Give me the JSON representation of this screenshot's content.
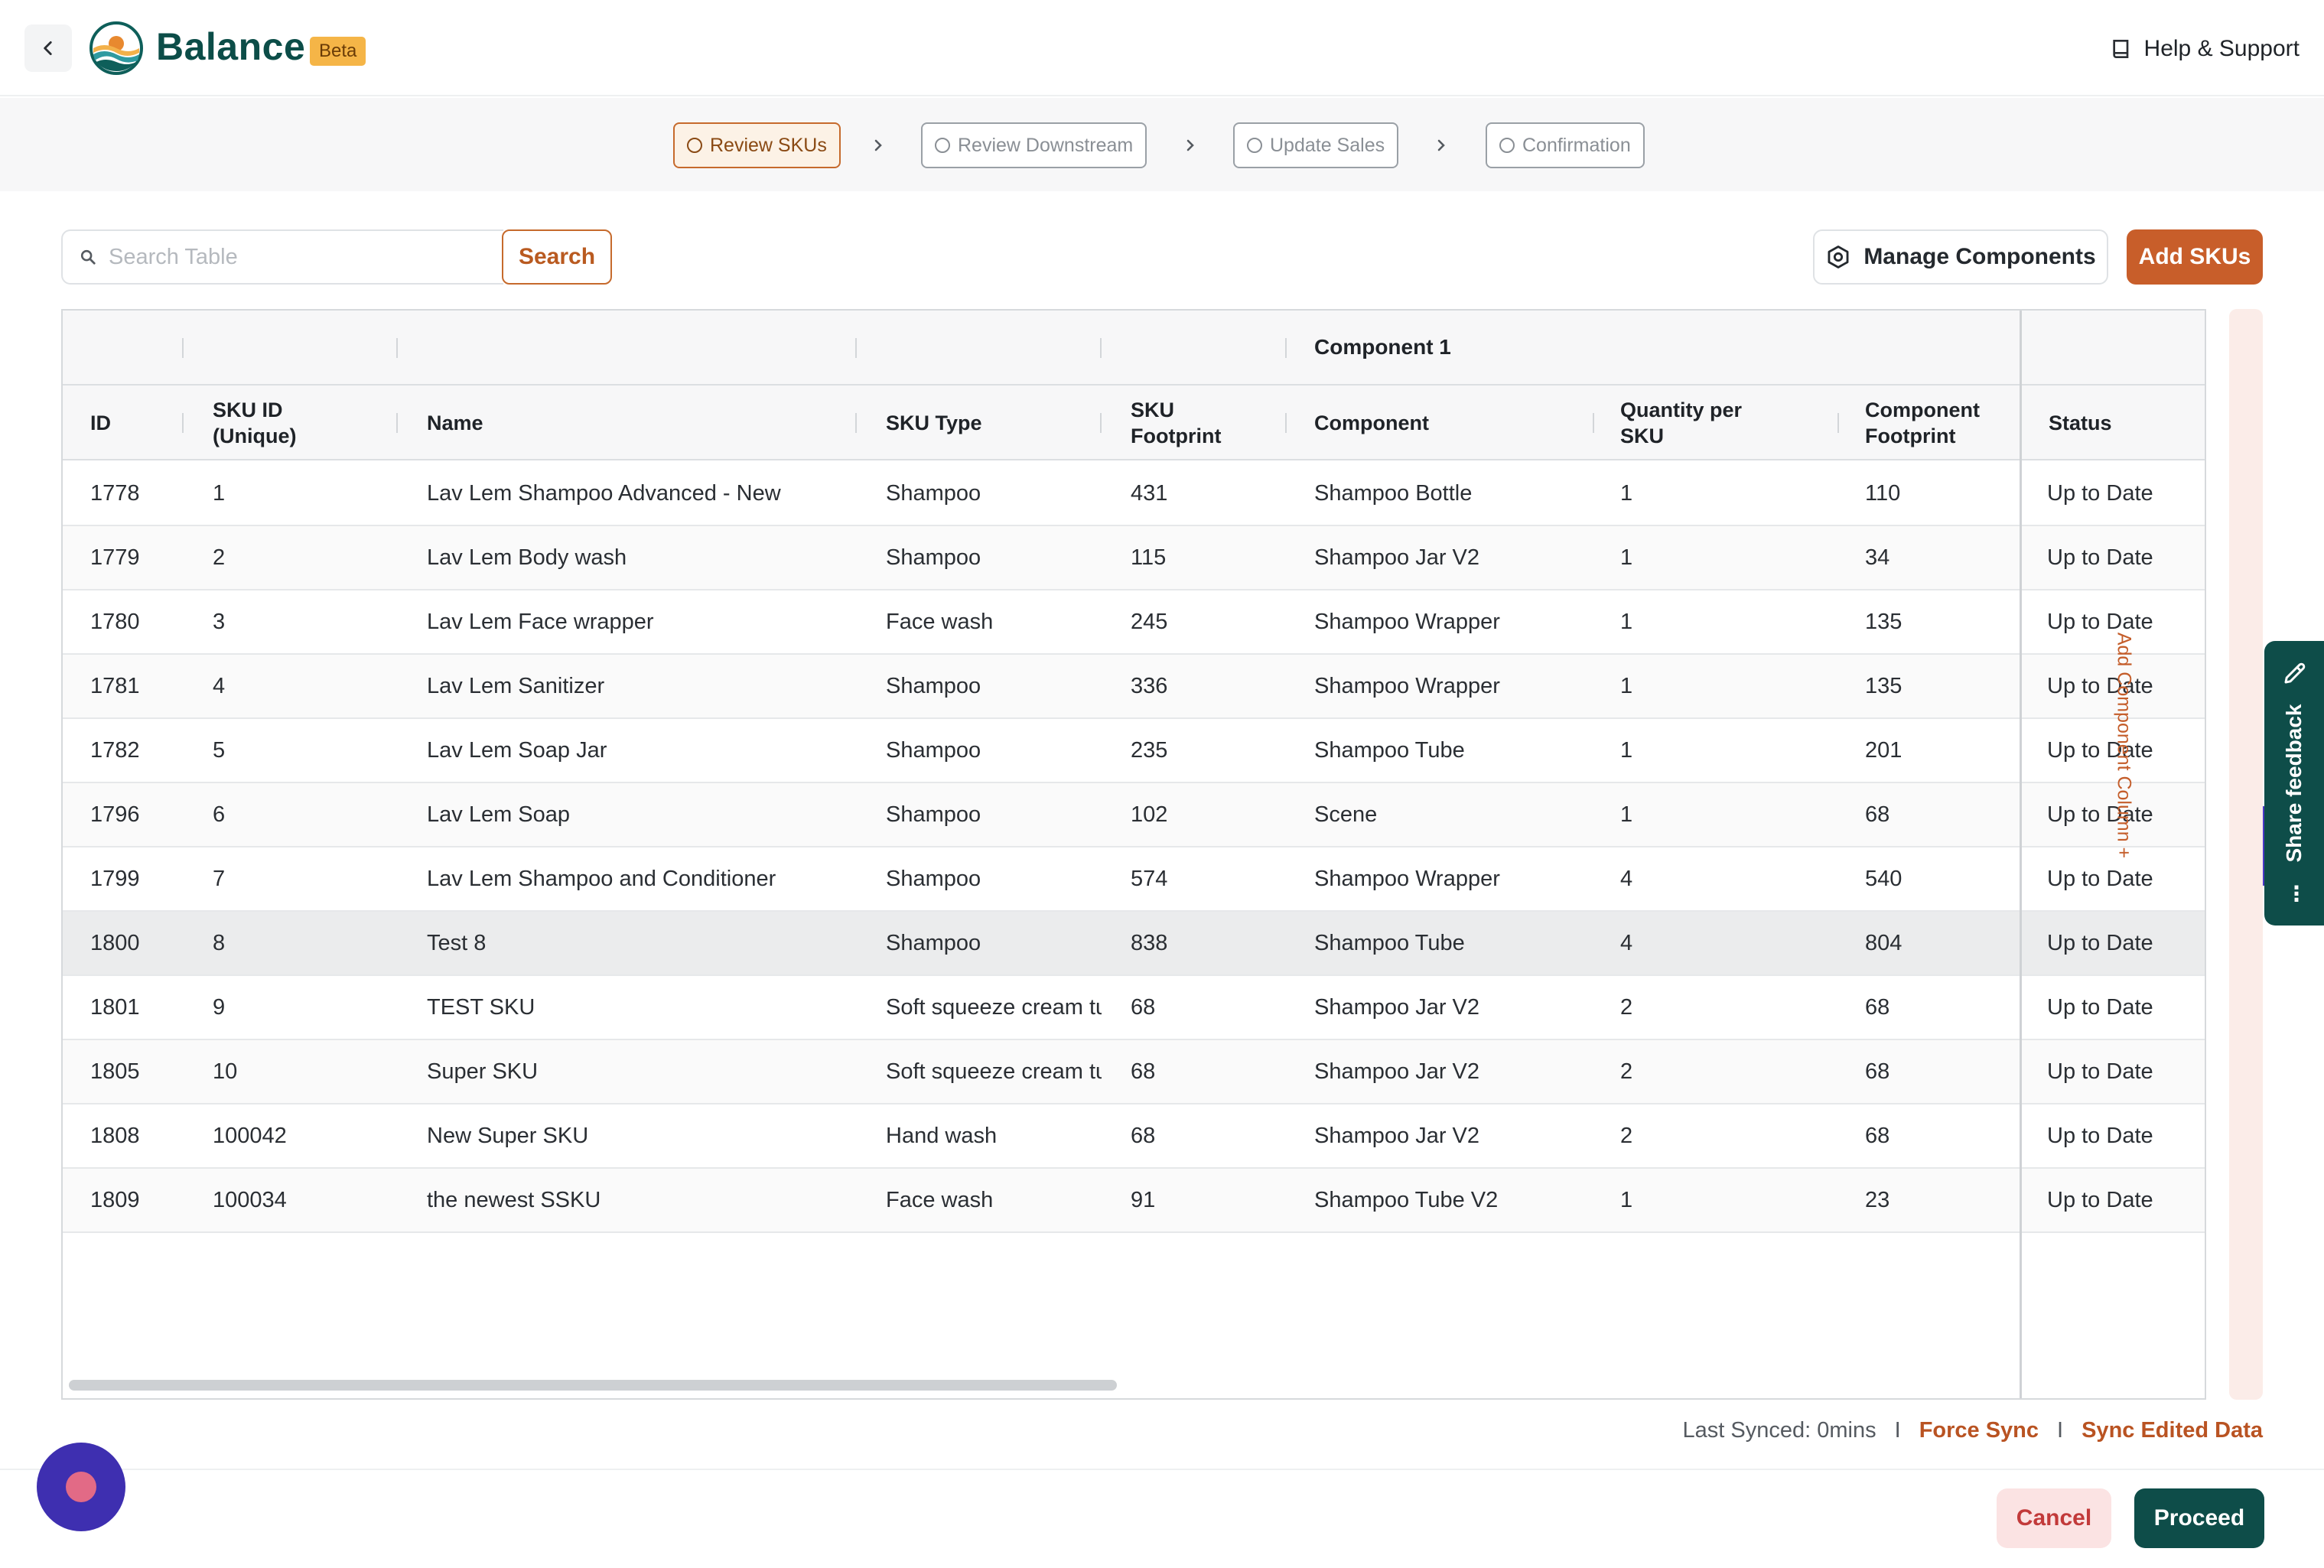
{
  "header": {
    "brand": "Balance",
    "badge": "Beta",
    "help_label": "Help & Support"
  },
  "steps": [
    {
      "label": "Review SKUs",
      "active": true
    },
    {
      "label": "Review Downstream",
      "active": false
    },
    {
      "label": "Update Sales",
      "active": false
    },
    {
      "label": "Confirmation",
      "active": false
    }
  ],
  "toolbar": {
    "search_placeholder": "Search Table",
    "search_value": "",
    "search_label": "Search",
    "manage_label": "Manage Components",
    "add_label": "Add SKUs"
  },
  "table": {
    "group_header": "Component 1",
    "columns": [
      {
        "key": "id",
        "label": "ID"
      },
      {
        "key": "sku_id",
        "label": "SKU ID\n(Unique)"
      },
      {
        "key": "name",
        "label": "Name"
      },
      {
        "key": "sku_type",
        "label": "SKU Type"
      },
      {
        "key": "sku_footprint",
        "label": "SKU\nFootprint"
      },
      {
        "key": "component",
        "label": "Component"
      },
      {
        "key": "qty",
        "label": "Quantity per\nSKU"
      },
      {
        "key": "comp_footprint",
        "label": "Component\nFootprint"
      },
      {
        "key": "status",
        "label": "Status"
      }
    ],
    "rows": [
      {
        "id": "1778",
        "sku_id": "1",
        "name": "Lav Lem Shampoo Advanced - New",
        "sku_type": "Shampoo",
        "sku_footprint": "431",
        "component": "Shampoo Bottle",
        "qty": "1",
        "comp_footprint": "110",
        "status": "Up to Date"
      },
      {
        "id": "1779",
        "sku_id": "2",
        "name": "Lav Lem Body wash",
        "sku_type": "Shampoo",
        "sku_footprint": "115",
        "component": "Shampoo Jar V2",
        "qty": "1",
        "comp_footprint": "34",
        "status": "Up to Date"
      },
      {
        "id": "1780",
        "sku_id": "3",
        "name": "Lav Lem Face wrapper",
        "sku_type": "Face wash",
        "sku_footprint": "245",
        "component": "Shampoo Wrapper",
        "qty": "1",
        "comp_footprint": "135",
        "status": "Up to Date"
      },
      {
        "id": "1781",
        "sku_id": "4",
        "name": "Lav Lem Sanitizer",
        "sku_type": "Shampoo",
        "sku_footprint": "336",
        "component": "Shampoo Wrapper",
        "qty": "1",
        "comp_footprint": "135",
        "status": "Up to Date"
      },
      {
        "id": "1782",
        "sku_id": "5",
        "name": "Lav Lem Soap Jar",
        "sku_type": "Shampoo",
        "sku_footprint": "235",
        "component": "Shampoo Tube",
        "qty": "1",
        "comp_footprint": "201",
        "status": "Up to Date"
      },
      {
        "id": "1796",
        "sku_id": "6",
        "name": "Lav Lem Soap",
        "sku_type": "Shampoo",
        "sku_footprint": "102",
        "component": "Scene",
        "qty": "1",
        "comp_footprint": "68",
        "status": "Up to Date"
      },
      {
        "id": "1799",
        "sku_id": "7",
        "name": "Lav Lem Shampoo and Conditioner",
        "sku_type": "Shampoo",
        "sku_footprint": "574",
        "component": "Shampoo Wrapper",
        "qty": "4",
        "comp_footprint": "540",
        "status": "Up to Date"
      },
      {
        "id": "1800",
        "sku_id": "8",
        "name": "Test 8",
        "sku_type": "Shampoo",
        "sku_footprint": "838",
        "component": "Shampoo Tube",
        "qty": "4",
        "comp_footprint": "804",
        "status": "Up to Date"
      },
      {
        "id": "1801",
        "sku_id": "9",
        "name": "TEST SKU",
        "sku_type": "Soft squeeze cream tu",
        "sku_footprint": "68",
        "component": "Shampoo Jar V2",
        "qty": "2",
        "comp_footprint": "68",
        "status": "Up to Date"
      },
      {
        "id": "1805",
        "sku_id": "10",
        "name": "Super SKU",
        "sku_type": "Soft squeeze cream tu",
        "sku_footprint": "68",
        "component": "Shampoo Jar V2",
        "qty": "2",
        "comp_footprint": "68",
        "status": "Up to Date"
      },
      {
        "id": "1808",
        "sku_id": "100042",
        "name": "New Super SKU",
        "sku_type": "Hand wash",
        "sku_footprint": "68",
        "component": "Shampoo Jar V2",
        "qty": "2",
        "comp_footprint": "68",
        "status": "Up to Date"
      },
      {
        "id": "1809",
        "sku_id": "100034",
        "name": "the newest SSKU",
        "sku_type": "Face wash",
        "sku_footprint": "91",
        "component": "Shampoo Tube V2",
        "qty": "1",
        "comp_footprint": "23",
        "status": "Up to Date"
      }
    ],
    "highlighted_row": "1800"
  },
  "side": {
    "add_column_label": "Add Component Column +",
    "feedback_label": "Share feedback"
  },
  "sync": {
    "last_synced": "Last Synced: 0mins",
    "separator": "I",
    "force_sync": "Force Sync",
    "sync_edited": "Sync Edited Data"
  },
  "footer": {
    "cancel_label": "Cancel",
    "proceed_label": "Proceed"
  },
  "colors": {
    "brand_teal": "#0e4d49",
    "accent_orange": "#c85e2a",
    "beta_badge": "#f5b547"
  }
}
